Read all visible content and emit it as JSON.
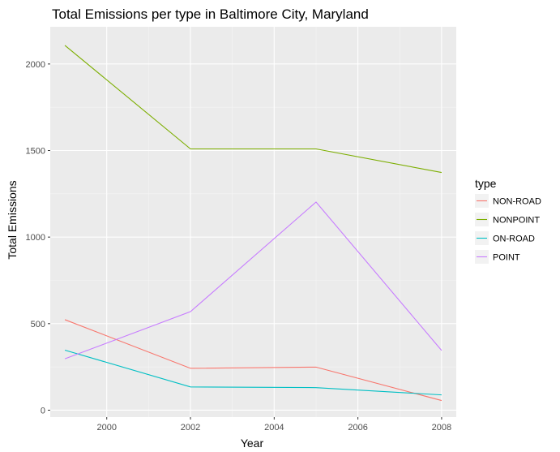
{
  "chart_data": {
    "type": "line",
    "title": "Total Emissions per type in Baltimore City, Maryland",
    "xlabel": "Year",
    "ylabel": "Total Emissions",
    "x": [
      1999,
      2002,
      2005,
      2008
    ],
    "xticks": [
      2000,
      2002,
      2004,
      2006,
      2008
    ],
    "xtick_labels": [
      "2000",
      "2002",
      "2004",
      "2006",
      "2008"
    ],
    "yticks": [
      0,
      500,
      1000,
      1500,
      2000
    ],
    "ytick_labels": [
      "0",
      "500",
      "1000",
      "1500",
      "2000"
    ],
    "xlim": [
      1998.65,
      2008.35
    ],
    "ylim": [
      -40,
      2215
    ],
    "grid": true,
    "legend": {
      "title": "type",
      "position": "right"
    },
    "series": [
      {
        "name": "NON-ROAD",
        "color": "#F8766D",
        "values": [
          522.9,
          242.0,
          248.9,
          55.8
        ]
      },
      {
        "name": "NONPOINT",
        "color": "#7CAE00",
        "values": [
          2107.6,
          1509.5,
          1509.5,
          1373.2
        ]
      },
      {
        "name": "ON-ROAD",
        "color": "#00BFC4",
        "values": [
          346.8,
          134.3,
          130.4,
          88.3
        ]
      },
      {
        "name": "POINT",
        "color": "#C77CFF",
        "values": [
          296.8,
          569.3,
          1202.5,
          344.98
        ]
      }
    ]
  }
}
